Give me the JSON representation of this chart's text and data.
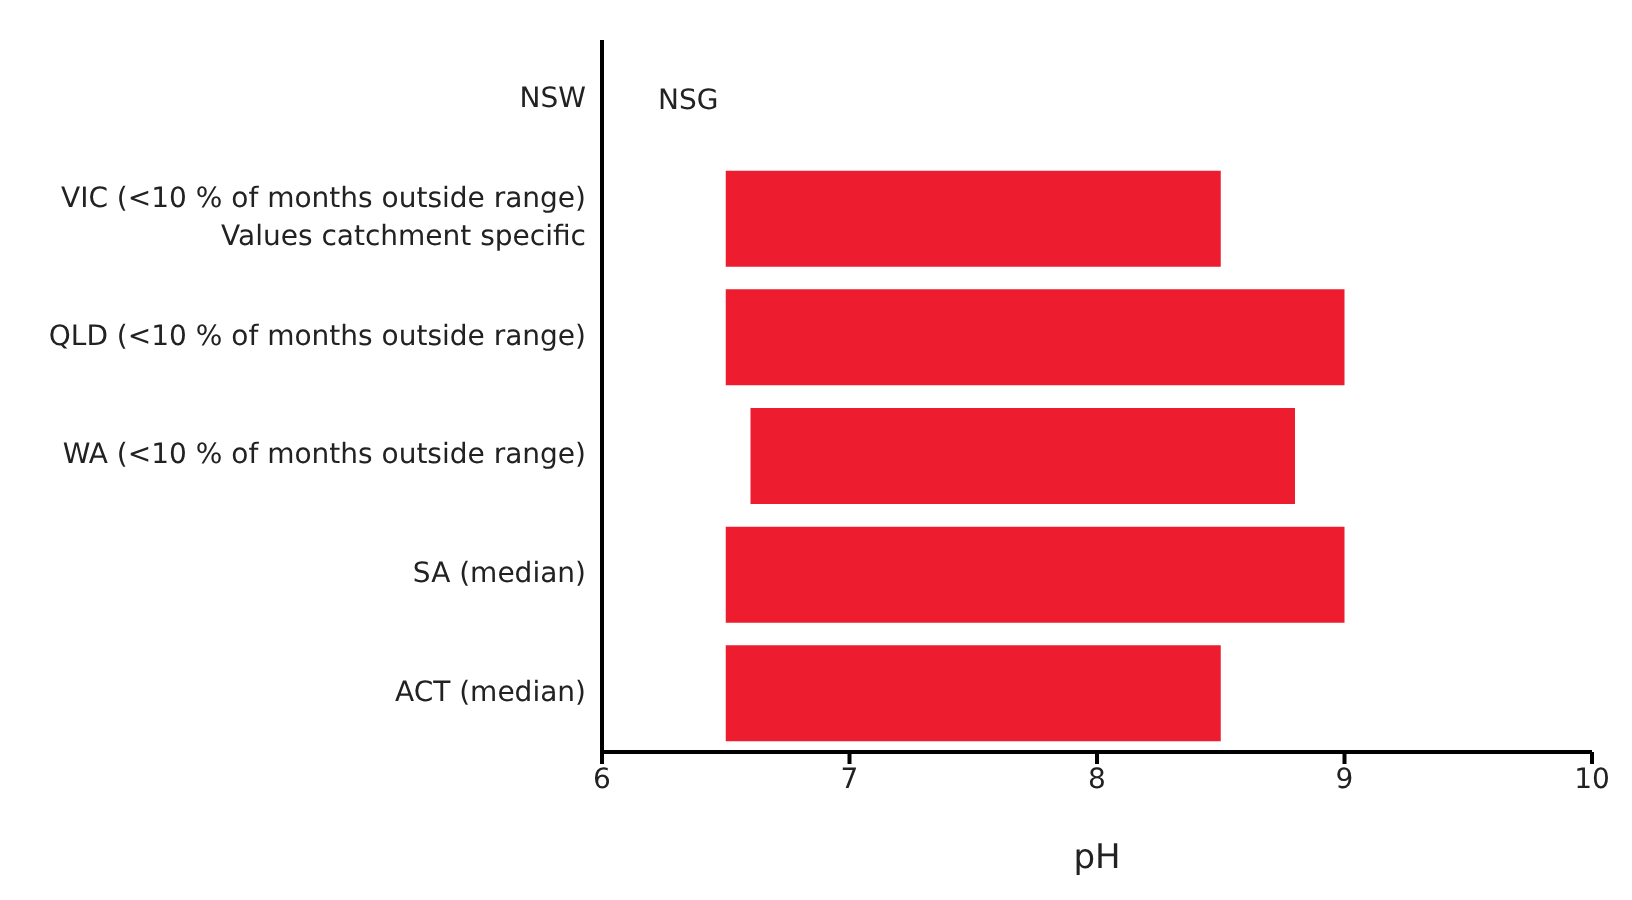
{
  "chart_data": {
    "type": "bar",
    "orientation": "horizontal",
    "xlabel": "pH",
    "categories": [
      "NSW",
      "VIC (<10 % of months outside range)\nValues catchment specific",
      "QLD (<10 % of months outside range)",
      "WA (<10 % of months outside range)",
      "SA (median)",
      "ACT (median)"
    ],
    "values": [
      null,
      2.0,
      2.5,
      2.2,
      2.5,
      2.0
    ],
    "base": [
      null,
      6.5,
      6.5,
      6.6,
      6.5,
      6.5
    ],
    "color": "#ed1c2e",
    "xlim": [
      6,
      10
    ],
    "xticks": [
      6,
      7,
      8,
      9,
      10
    ],
    "annotations": [
      "NSG"
    ]
  }
}
